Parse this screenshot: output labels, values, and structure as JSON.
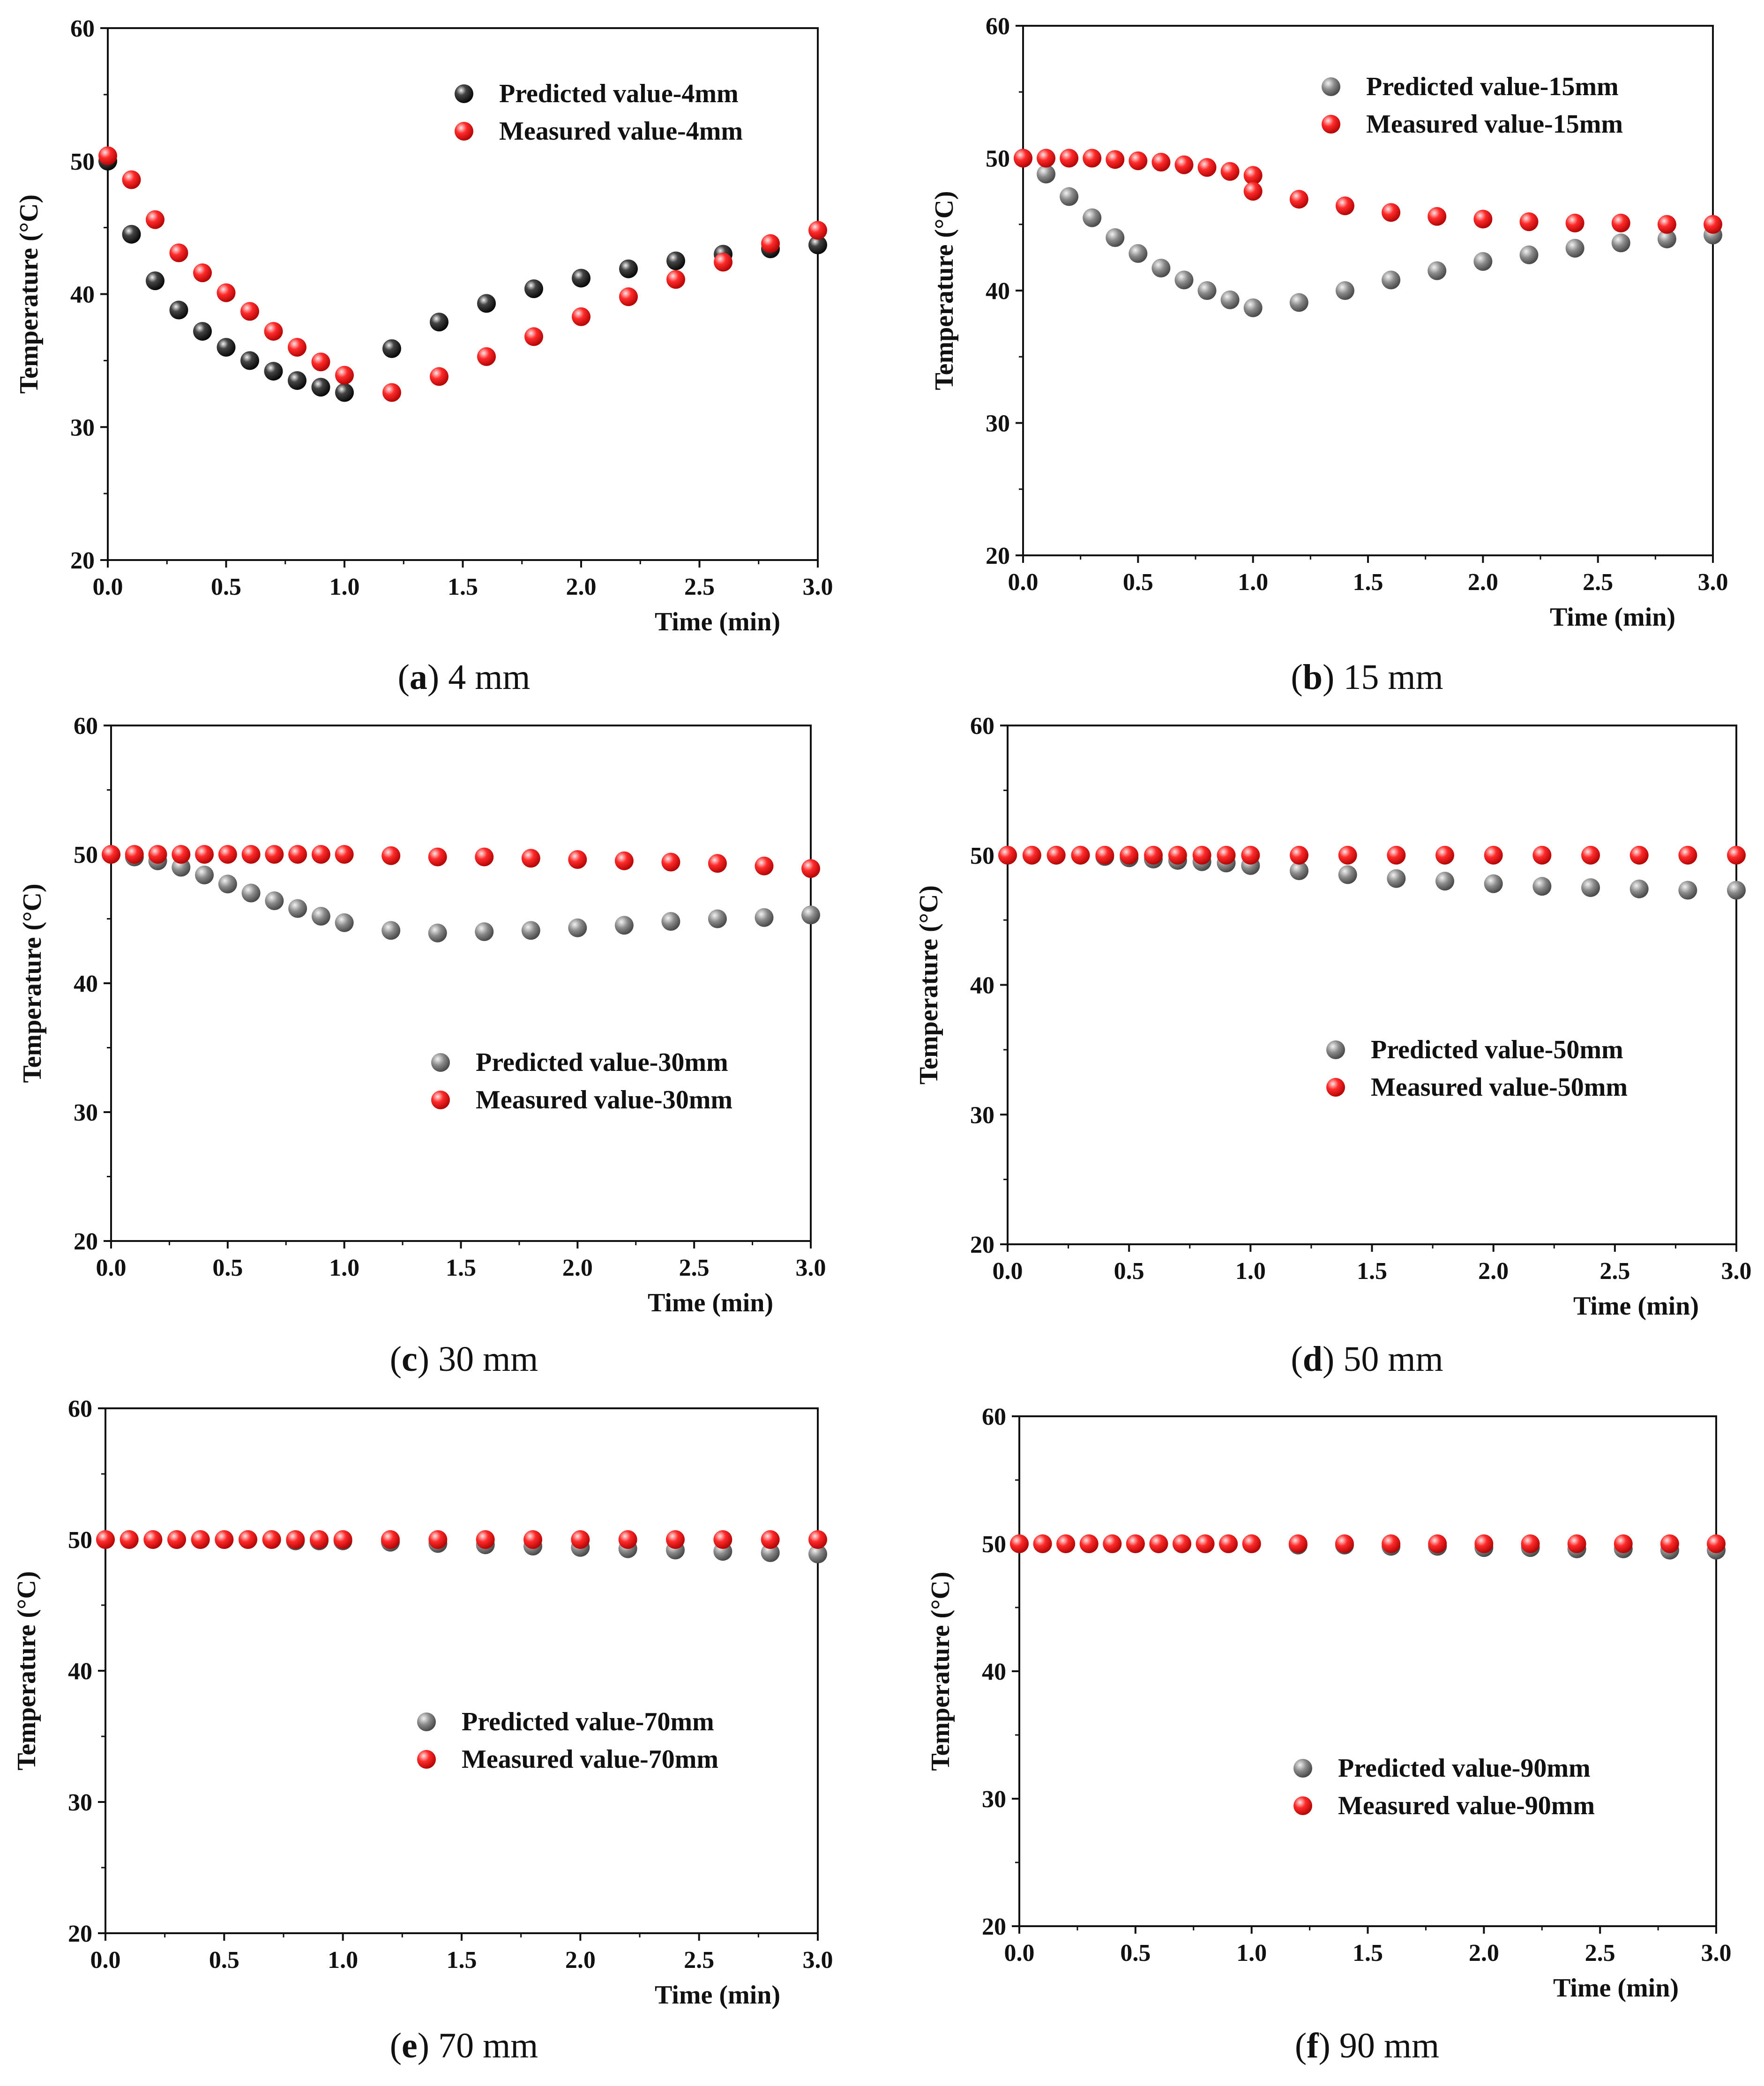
{
  "colors": {
    "predicted_black": "#111111",
    "predicted_gray": "#6e6e6e",
    "measured": "#ee1111"
  },
  "chart_data": [
    {
      "type": "scatter",
      "caption": {
        "letter": "a",
        "text": " 4 mm"
      },
      "xlabel": "Time (min)",
      "ylabel": "Temperature (°C)",
      "xlim": [
        0,
        3
      ],
      "ylim": [
        20,
        60
      ],
      "xticks": [
        "0.0",
        "0.5",
        "1.0",
        "1.5",
        "2.0",
        "2.5",
        "3.0"
      ],
      "yticks": [
        "20",
        "30",
        "40",
        "50",
        "60"
      ],
      "legend_position": "top-right",
      "x": [
        0,
        0.1,
        0.2,
        0.3,
        0.4,
        0.5,
        0.6,
        0.7,
        0.8,
        0.9,
        1.0,
        1.2,
        1.4,
        1.6,
        1.8,
        2.0,
        2.2,
        2.4,
        2.6,
        2.8,
        3.0
      ],
      "series": [
        {
          "name": "Predicted value-4mm",
          "color": "#111111",
          "values": [
            50.0,
            44.5,
            41.0,
            38.8,
            37.2,
            36.0,
            35.0,
            34.2,
            33.5,
            33.0,
            32.6,
            35.9,
            37.9,
            39.3,
            40.4,
            41.2,
            41.9,
            42.5,
            43.0,
            43.4,
            43.7
          ]
        },
        {
          "name": "Measured value-4mm",
          "color": "#ee1111",
          "values": [
            50.4,
            48.6,
            45.6,
            43.1,
            41.6,
            40.1,
            38.7,
            37.2,
            36.0,
            34.9,
            33.9,
            32.6,
            33.8,
            35.3,
            36.8,
            38.3,
            39.8,
            41.1,
            42.4,
            43.8,
            44.8
          ]
        }
      ]
    },
    {
      "type": "scatter",
      "caption": {
        "letter": "b",
        "text": " 15 mm"
      },
      "xlabel": "Time (min)",
      "ylabel": "Temperature (°C)",
      "xlim": [
        0,
        3
      ],
      "ylim": [
        20,
        60
      ],
      "xticks": [
        "0.0",
        "0.5",
        "1.0",
        "1.5",
        "2.0",
        "2.5",
        "3.0"
      ],
      "yticks": [
        "20",
        "30",
        "40",
        "50",
        "60"
      ],
      "legend_position": "top-right",
      "x": [
        0,
        0.1,
        0.2,
        0.3,
        0.4,
        0.5,
        0.6,
        0.7,
        0.8,
        0.9,
        1.0,
        1.2,
        1.4,
        1.6,
        1.8,
        2.0,
        2.2,
        2.4,
        2.6,
        2.8,
        3.0
      ],
      "series": [
        {
          "name": "Predicted value-15mm",
          "color": "#6e6e6e",
          "values": [
            50.0,
            48.8,
            47.1,
            45.5,
            44.0,
            42.8,
            41.7,
            40.8,
            40.0,
            39.3,
            38.7,
            39.1,
            40.0,
            40.8,
            41.5,
            42.2,
            42.7,
            43.2,
            43.6,
            43.9,
            44.2
          ]
        },
        {
          "name": "Measured value-15mm",
          "color": "#ee1111",
          "values": [
            50.0,
            50.0,
            50.0,
            50.0,
            49.9,
            49.8,
            49.7,
            49.5,
            49.3,
            49.0,
            48.7,
            46.9,
            46.4,
            45.9,
            45.6,
            45.4,
            45.2,
            45.1,
            45.1,
            45.0,
            45.0
          ]
        }
      ],
      "extra_points": [
        {
          "series": "Measured value-15mm",
          "x": 1.0,
          "y": 47.5
        }
      ]
    },
    {
      "type": "scatter",
      "caption": {
        "letter": "c",
        "text": " 30 mm"
      },
      "xlabel": "Time (min)",
      "ylabel": "Temperature (°C)",
      "xlim": [
        0,
        3
      ],
      "ylim": [
        20,
        60
      ],
      "xticks": [
        "0.0",
        "0.5",
        "1.0",
        "1.5",
        "2.0",
        "2.5",
        "3.0"
      ],
      "yticks": [
        "20",
        "30",
        "40",
        "50",
        "60"
      ],
      "legend_position": "middle-right",
      "x": [
        0,
        0.1,
        0.2,
        0.3,
        0.4,
        0.5,
        0.6,
        0.7,
        0.8,
        0.9,
        1.0,
        1.2,
        1.4,
        1.6,
        1.8,
        2.0,
        2.2,
        2.4,
        2.6,
        2.8,
        3.0
      ],
      "series": [
        {
          "name": "Predicted value-30mm",
          "color": "#6e6e6e",
          "values": [
            50.0,
            49.8,
            49.5,
            49.0,
            48.4,
            47.7,
            47.0,
            46.4,
            45.8,
            45.2,
            44.7,
            44.1,
            43.9,
            44.0,
            44.1,
            44.3,
            44.5,
            44.8,
            45.0,
            45.1,
            45.3
          ]
        },
        {
          "name": "Measured value-30mm",
          "color": "#ee1111",
          "values": [
            50.0,
            50.0,
            50.0,
            50.0,
            50.0,
            50.0,
            50.0,
            50.0,
            50.0,
            50.0,
            50.0,
            49.9,
            49.8,
            49.8,
            49.7,
            49.6,
            49.5,
            49.4,
            49.3,
            49.1,
            48.9
          ]
        }
      ]
    },
    {
      "type": "scatter",
      "caption": {
        "letter": "d",
        "text": " 50 mm"
      },
      "xlabel": "Time (min)",
      "ylabel": "Temperature (°C)",
      "xlim": [
        0,
        3
      ],
      "ylim": [
        20,
        60
      ],
      "xticks": [
        "0.0",
        "0.5",
        "1.0",
        "1.5",
        "2.0",
        "2.5",
        "3.0"
      ],
      "yticks": [
        "20",
        "30",
        "40",
        "50",
        "60"
      ],
      "legend_position": "middle-right",
      "x": [
        0,
        0.1,
        0.2,
        0.3,
        0.4,
        0.5,
        0.6,
        0.7,
        0.8,
        0.9,
        1.0,
        1.2,
        1.4,
        1.6,
        1.8,
        2.0,
        2.2,
        2.4,
        2.6,
        2.8,
        3.0
      ],
      "series": [
        {
          "name": "Predicted value-50mm",
          "color": "#6e6e6e",
          "values": [
            50.0,
            50.0,
            50.0,
            50.0,
            49.9,
            49.8,
            49.7,
            49.6,
            49.5,
            49.4,
            49.2,
            48.8,
            48.5,
            48.2,
            48.0,
            47.8,
            47.6,
            47.5,
            47.4,
            47.3,
            47.3
          ]
        },
        {
          "name": "Measured value-50mm",
          "color": "#ee1111",
          "values": [
            50.0,
            50.0,
            50.0,
            50.0,
            50.0,
            50.0,
            50.0,
            50.0,
            50.0,
            50.0,
            50.0,
            50.0,
            50.0,
            50.0,
            50.0,
            50.0,
            50.0,
            50.0,
            50.0,
            50.0,
            50.0
          ]
        }
      ]
    },
    {
      "type": "scatter",
      "caption": {
        "letter": "e",
        "text": " 70 mm"
      },
      "xlabel": "Time (min)",
      "ylabel": "Temperature (°C)",
      "xlim": [
        0,
        3
      ],
      "ylim": [
        20,
        60
      ],
      "xticks": [
        "0.0",
        "0.5",
        "1.0",
        "1.5",
        "2.0",
        "2.5",
        "3.0"
      ],
      "yticks": [
        "20",
        "30",
        "40",
        "50",
        "60"
      ],
      "legend_position": "middle-right",
      "x": [
        0,
        0.1,
        0.2,
        0.3,
        0.4,
        0.5,
        0.6,
        0.7,
        0.8,
        0.9,
        1.0,
        1.2,
        1.4,
        1.6,
        1.8,
        2.0,
        2.2,
        2.4,
        2.6,
        2.8,
        3.0
      ],
      "series": [
        {
          "name": "Predicted value-70mm",
          "color": "#6e6e6e",
          "values": [
            50.0,
            50.0,
            50.0,
            50.0,
            50.0,
            50.0,
            50.0,
            50.0,
            49.9,
            49.9,
            49.9,
            49.8,
            49.7,
            49.6,
            49.5,
            49.4,
            49.3,
            49.2,
            49.1,
            49.0,
            48.9
          ]
        },
        {
          "name": "Measured value-70mm",
          "color": "#ee1111",
          "values": [
            50.0,
            50.0,
            50.0,
            50.0,
            50.0,
            50.0,
            50.0,
            50.0,
            50.0,
            50.0,
            50.0,
            50.0,
            50.0,
            50.0,
            50.0,
            50.0,
            50.0,
            50.0,
            50.0,
            50.0,
            50.0
          ]
        }
      ]
    },
    {
      "type": "scatter",
      "caption": {
        "letter": "f",
        "text": " 90 mm"
      },
      "xlabel": "Time (min)",
      "ylabel": "Temperature (°C)",
      "xlim": [
        0,
        3
      ],
      "ylim": [
        20,
        60
      ],
      "xticks": [
        "0.0",
        "0.5",
        "1.0",
        "1.5",
        "2.0",
        "2.5",
        "3.0"
      ],
      "yticks": [
        "20",
        "30",
        "40",
        "50",
        "60"
      ],
      "legend_position": "middle-right",
      "x": [
        0,
        0.1,
        0.2,
        0.3,
        0.4,
        0.5,
        0.6,
        0.7,
        0.8,
        0.9,
        1.0,
        1.2,
        1.4,
        1.6,
        1.8,
        2.0,
        2.2,
        2.4,
        2.6,
        2.8,
        3.0
      ],
      "series": [
        {
          "name": "Predicted value-90mm",
          "color": "#6e6e6e",
          "values": [
            50.0,
            50.0,
            50.0,
            50.0,
            50.0,
            50.0,
            50.0,
            50.0,
            50.0,
            50.0,
            50.0,
            49.9,
            49.9,
            49.8,
            49.8,
            49.7,
            49.7,
            49.6,
            49.6,
            49.5,
            49.5
          ]
        },
        {
          "name": "Measured value-90mm",
          "color": "#ee1111",
          "values": [
            50.0,
            50.0,
            50.0,
            50.0,
            50.0,
            50.0,
            50.0,
            50.0,
            50.0,
            50.0,
            50.0,
            50.0,
            50.0,
            50.0,
            50.0,
            50.0,
            50.0,
            50.0,
            50.0,
            50.0,
            50.0
          ]
        }
      ]
    }
  ]
}
